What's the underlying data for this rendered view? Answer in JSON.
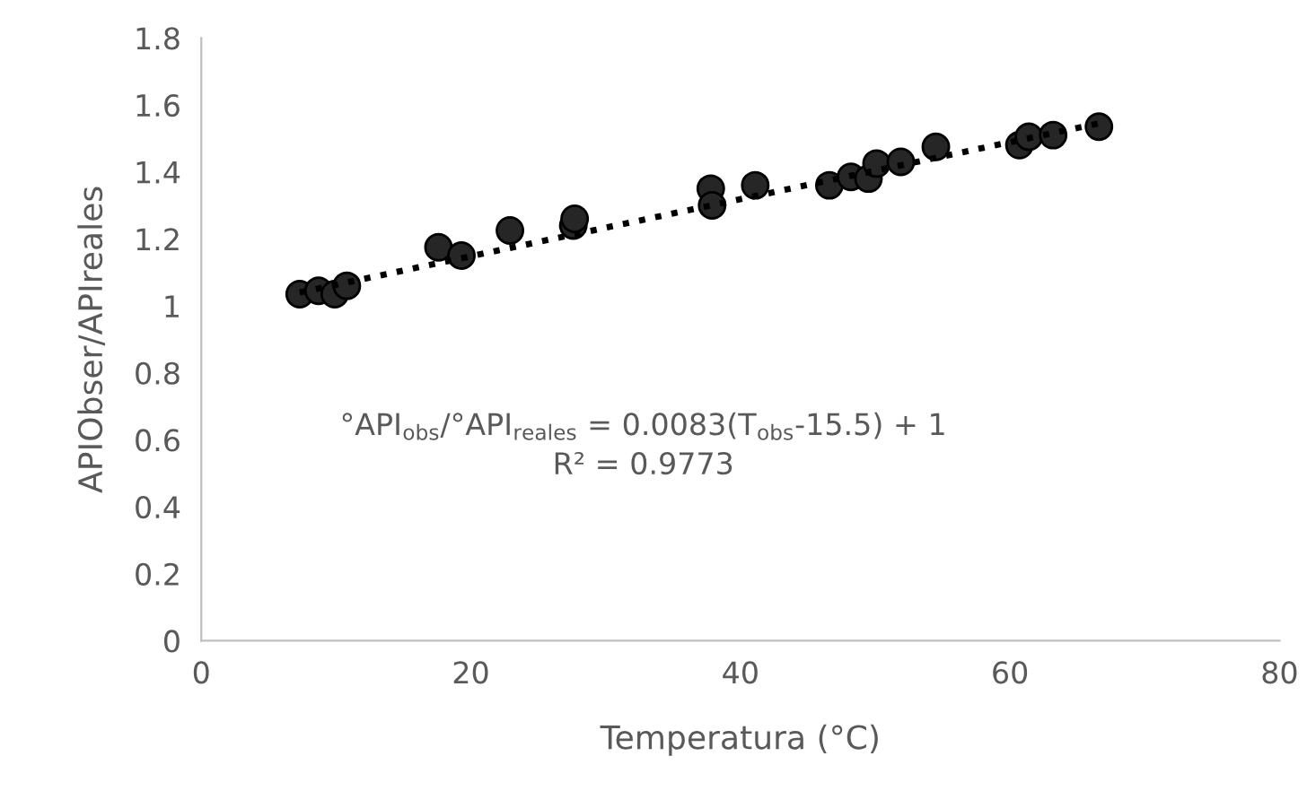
{
  "chart_data": {
    "type": "scatter",
    "xlabel": "Temperatura (°C)",
    "ylabel": "APIObser/APIreales",
    "xlim": [
      0,
      80
    ],
    "xticks": [
      0,
      20,
      40,
      60,
      80
    ],
    "ylim": [
      0,
      1.8
    ],
    "yticks": [
      0,
      0.2,
      0.4,
      0.6,
      0.8,
      1,
      1.2,
      1.4,
      1.6,
      1.8
    ],
    "grid": false,
    "legend": false,
    "marker": "circle",
    "series": [
      {
        "color": "#262626",
        "x": [
          7.3,
          8.7,
          9.9,
          10.8,
          17.6,
          19.3,
          22.9,
          27.6,
          27.7,
          37.8,
          37.9,
          41.1,
          46.6,
          48.2,
          49.5,
          50.1,
          51.9,
          54.5,
          60.7,
          61.4,
          63.2,
          66.6
        ],
        "values": [
          1.035,
          1.045,
          1.035,
          1.06,
          1.175,
          1.15,
          1.225,
          1.24,
          1.26,
          1.35,
          1.3,
          1.36,
          1.36,
          1.385,
          1.38,
          1.425,
          1.43,
          1.475,
          1.48,
          1.505,
          1.51,
          1.535
        ]
      },
      {
        "type": "line",
        "color": "#000000",
        "line_style": "dotted",
        "marker": "none",
        "x": [
          7.3,
          66.6
        ],
        "values": [
          1.04,
          1.545
        ]
      }
    ],
    "annotations": [
      "°API$_{obs}$/°API$_{reales}$ = 0.0083(T$_{obs}$-15.5) + 1",
      "R² = 0.9773"
    ]
  }
}
